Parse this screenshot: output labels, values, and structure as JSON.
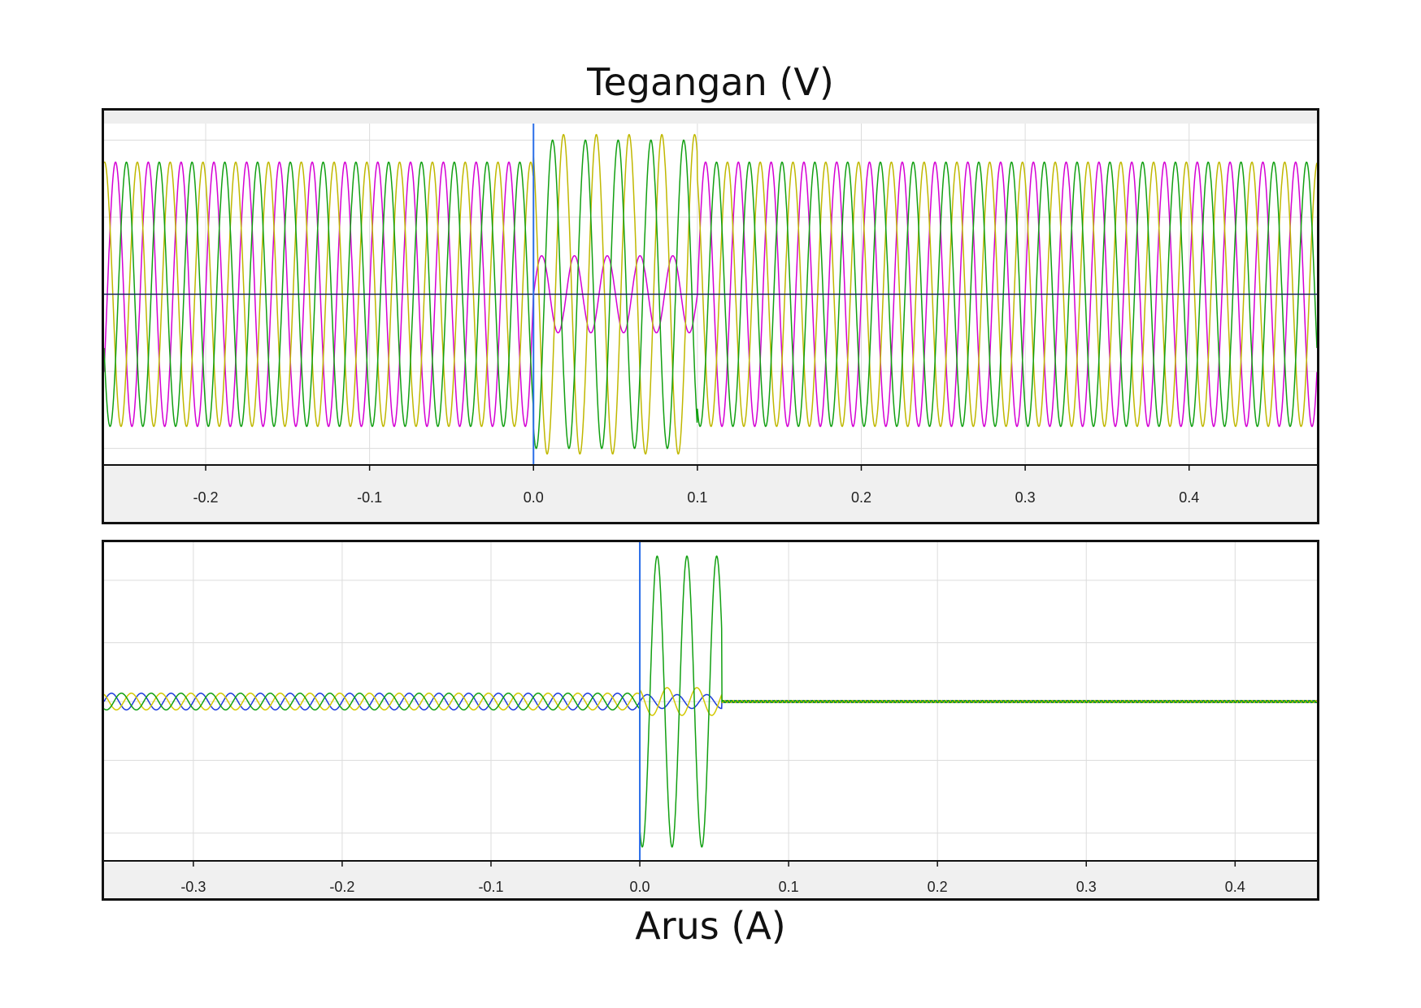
{
  "figure": {
    "top_title": "Tegangan (V)",
    "bottom_title": "Arus (A)"
  },
  "chart_data": [
    {
      "type": "line",
      "title": "Tegangan (V)",
      "xlabel": "",
      "ylabel": "",
      "xlim": [
        -0.262,
        0.478
      ],
      "ylim": [
        -1.55,
        1.55
      ],
      "x_ticks": [
        -0.2,
        -0.1,
        0.0,
        0.1,
        0.2,
        0.3,
        0.4
      ],
      "x_tick_labels": [
        "-0.2",
        "-0.1",
        "0.0",
        "0.1",
        "0.2",
        "0.3",
        "0.4"
      ],
      "grid": true,
      "legend": "none",
      "cursor_x": 0.0,
      "frequency_hz": 50,
      "series": [
        {
          "color": "#d400d4",
          "phase_deg": 0,
          "pre_fault_amplitude": 1.2,
          "fault_start": 0.0,
          "fault_end": 0.1,
          "fault_amplitude": 0.35,
          "post_fault_amplitude": 1.2
        },
        {
          "color": "#c0b800",
          "phase_deg": 120,
          "pre_fault_amplitude": 1.2,
          "fault_start": 0.0,
          "fault_end": 0.1,
          "fault_amplitude": 1.45,
          "post_fault_amplitude": 1.2
        },
        {
          "color": "#12a012",
          "phase_deg": 240,
          "pre_fault_amplitude": 1.2,
          "fault_start": 0.0,
          "fault_end": 0.1,
          "fault_amplitude": 1.4,
          "post_fault_amplitude": 1.2
        }
      ]
    },
    {
      "type": "line",
      "title": "Arus (A)",
      "xlabel": "",
      "ylabel": "",
      "xlim": [
        -0.36,
        0.455
      ],
      "ylim": [
        -2.3,
        2.3
      ],
      "x_ticks": [
        -0.3,
        -0.2,
        -0.1,
        0.0,
        0.1,
        0.2,
        0.3,
        0.4
      ],
      "x_tick_labels": [
        "-0.3",
        "-0.2",
        "-0.1",
        "0.0",
        "0.1",
        "0.2",
        "0.3",
        "0.4"
      ],
      "grid": true,
      "legend": "none",
      "cursor_x": 0.0,
      "frequency_hz": 50,
      "series": [
        {
          "color": "#1e3cdc",
          "phase_deg": 0,
          "pre_fault_amplitude": 0.12,
          "fault_start": 0.0,
          "fault_end": 0.055,
          "fault_amplitude": 0.1,
          "post_fault_amplitude": 0.0
        },
        {
          "color": "#d2c800",
          "phase_deg": 120,
          "pre_fault_amplitude": 0.12,
          "fault_start": 0.0,
          "fault_end": 0.055,
          "fault_amplitude": 0.2,
          "post_fault_amplitude": 0.0
        },
        {
          "color": "#12a012",
          "phase_deg": 240,
          "pre_fault_amplitude": 0.12,
          "fault_start": 0.0,
          "fault_end": 0.055,
          "fault_amplitude": 2.1,
          "post_fault_amplitude": 0.0
        }
      ]
    }
  ]
}
